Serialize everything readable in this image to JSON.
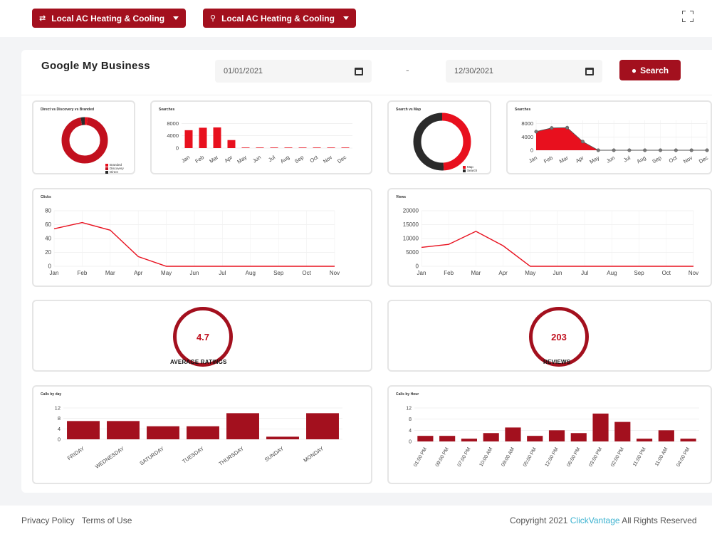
{
  "header": {
    "location_buttons": [
      {
        "icon": "swap-icon",
        "label": "Local AC Heating & Cooling"
      },
      {
        "icon": "map-pin-icon",
        "label": "Local AC Heating & Cooling"
      }
    ]
  },
  "page": {
    "title": "Google My Business",
    "start_date": "01/01/2021",
    "end_date": "12/30/2021",
    "date_separator": "-",
    "search_label": "Search"
  },
  "colors": {
    "brand": "#a3101e",
    "accent": "#e8101e",
    "dark": "#2b2b2b"
  },
  "metrics": {
    "rating": {
      "value": "4.7",
      "label": "AVERAGE RATINGS"
    },
    "reviews": {
      "value": "203",
      "label": "REVIEWS"
    }
  },
  "chart_data": [
    {
      "id": "direct_discovery_branded",
      "type": "pie",
      "title": "Direct vs Discovery vs Branded",
      "labels": [
        "Branded",
        "Discovery",
        "Direct"
      ],
      "values": [
        2,
        95,
        3
      ],
      "colors": [
        "#e8101e",
        "#c2101e",
        "#2b2b2b"
      ]
    },
    {
      "id": "searches_bar",
      "type": "bar",
      "title": "Searches",
      "categories": [
        "Jan",
        "Feb",
        "Mar",
        "Apr",
        "May",
        "Jun",
        "Jul",
        "Aug",
        "Sep",
        "Oct",
        "Nov",
        "Dec"
      ],
      "values": [
        5800,
        6600,
        6700,
        2600,
        0,
        0,
        0,
        0,
        0,
        0,
        0,
        0
      ],
      "yticks": [
        "8000",
        "4000",
        "0"
      ],
      "ylim": [
        0,
        9000
      ]
    },
    {
      "id": "search_vs_map",
      "type": "pie",
      "title": "Search vs Map",
      "labels": [
        "Map",
        "Search"
      ],
      "values": [
        49,
        51
      ],
      "colors": [
        "#e8101e",
        "#2b2b2b"
      ]
    },
    {
      "id": "searches_area",
      "type": "area",
      "title": "Searches",
      "categories": [
        "Jan",
        "Feb",
        "Mar",
        "Apr",
        "May",
        "Jun",
        "Jul",
        "Aug",
        "Sep",
        "Oct",
        "Nov",
        "Dec"
      ],
      "values": [
        5600,
        6700,
        6800,
        2600,
        0,
        0,
        0,
        0,
        0,
        0,
        0,
        0
      ],
      "yticks": [
        "8000",
        "4000",
        "0"
      ],
      "ylim": [
        0,
        9000
      ]
    },
    {
      "id": "clicks",
      "type": "line",
      "title": "Clicks",
      "categories": [
        "Jan",
        "Feb",
        "Mar",
        "Apr",
        "May",
        "Jun",
        "Jul",
        "Aug",
        "Sep",
        "Oct",
        "Nov"
      ],
      "values": [
        54,
        63,
        52,
        14,
        0,
        0,
        0,
        0,
        0,
        0,
        0
      ],
      "yticks": [
        "80",
        "60",
        "40",
        "20",
        "0"
      ],
      "ylim": [
        0,
        80
      ]
    },
    {
      "id": "views",
      "type": "line",
      "title": "Views",
      "categories": [
        "Jan",
        "Feb",
        "Mar",
        "Apr",
        "May",
        "Jun",
        "Jul",
        "Aug",
        "Sep",
        "Oct",
        "Nov"
      ],
      "values": [
        6800,
        7900,
        12600,
        7400,
        0,
        0,
        0,
        0,
        0,
        0,
        0
      ],
      "yticks": [
        "20000",
        "15000",
        "10000",
        "5000",
        "0"
      ],
      "ylim": [
        0,
        20000
      ]
    },
    {
      "id": "calls_by_day",
      "type": "bar",
      "title": "Calls by day",
      "categories": [
        "FRIDAY",
        "WEDNESDAY",
        "SATURDAY",
        "TUESDAY",
        "THURSDAY",
        "SUNDAY",
        "MONDAY"
      ],
      "values": [
        7,
        7,
        5,
        5,
        10,
        1,
        10
      ],
      "yticks": [
        "12",
        "8",
        "4",
        "0"
      ],
      "ylim": [
        0,
        12
      ]
    },
    {
      "id": "calls_by_hour",
      "type": "bar",
      "title": "Calls by Hour",
      "categories": [
        "01:00 PM",
        "09:00 PM",
        "07:00 PM",
        "10:00 AM",
        "09:00 AM",
        "05:00 PM",
        "12:00 PM",
        "06:00 PM",
        "03:00 PM",
        "02:00 PM",
        "11:00 PM",
        "11:00 AM",
        "04:00 PM"
      ],
      "values": [
        2,
        2,
        1,
        3,
        5,
        2,
        4,
        3,
        10,
        7,
        1,
        4,
        1
      ],
      "yticks": [
        "12",
        "8",
        "4",
        "0"
      ],
      "ylim": [
        0,
        12
      ]
    }
  ],
  "footer": {
    "privacy": "Privacy Policy",
    "terms": "Terms of Use",
    "copyright_prefix": "Copyright 2021",
    "brand": "ClickVantage",
    "copyright_suffix": "All Rights Reserved"
  }
}
